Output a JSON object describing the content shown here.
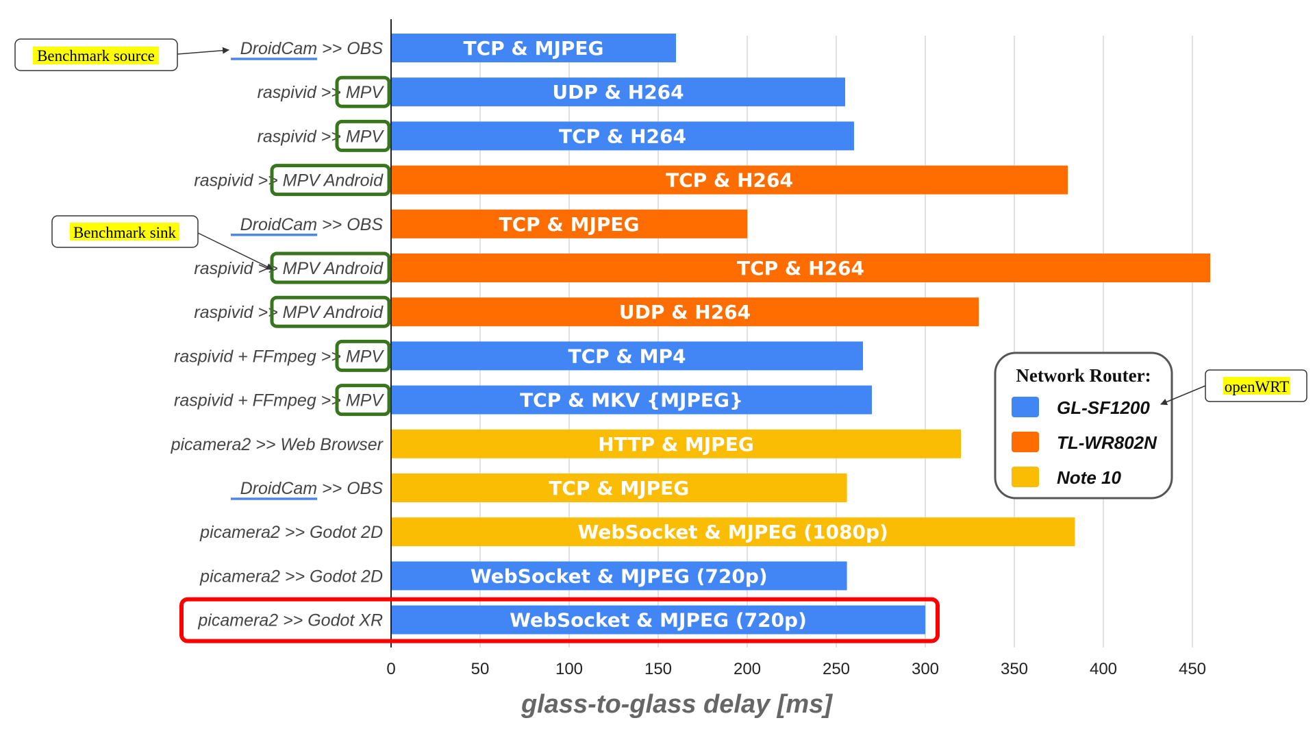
{
  "chart_data": {
    "type": "bar",
    "orientation": "horizontal",
    "xlabel": "glass-to-glass delay [ms]",
    "xlim": [
      0,
      460
    ],
    "xticks": [
      0,
      50,
      100,
      150,
      200,
      250,
      300,
      350,
      400,
      450
    ],
    "grid": true,
    "legend_position": "right",
    "colors": {
      "GL-SF1200": "#4285F4",
      "TL-WR802N": "#FF6D01",
      "Note 10": "#FBBC04"
    },
    "rows": [
      {
        "category": "DroidCam >> OBS",
        "value": 160,
        "label": "TCP & MJPEG",
        "router": "GL-SF1200"
      },
      {
        "category": "raspivid >> MPV",
        "value": 255,
        "label": "UDP & H264",
        "router": "GL-SF1200"
      },
      {
        "category": "raspivid >> MPV",
        "value": 260,
        "label": "TCP & H264",
        "router": "GL-SF1200"
      },
      {
        "category": "raspivid >> MPV Android",
        "value": 380,
        "label": "TCP & H264",
        "router": "TL-WR802N"
      },
      {
        "category": "DroidCam >> OBS",
        "value": 200,
        "label": "TCP & MJPEG",
        "router": "TL-WR802N"
      },
      {
        "category": "raspivid >> MPV Android",
        "value": 460,
        "label": "TCP & H264",
        "router": "TL-WR802N"
      },
      {
        "category": "raspivid >> MPV Android",
        "value": 330,
        "label": "UDP & H264",
        "router": "TL-WR802N"
      },
      {
        "category": "raspivid + FFmpeg >> MPV",
        "value": 265,
        "label": "TCP & MP4",
        "router": "GL-SF1200"
      },
      {
        "category": "raspivid + FFmpeg >> MPV",
        "value": 270,
        "label": "TCP & MKV {MJPEG}",
        "router": "GL-SF1200"
      },
      {
        "category": "picamera2 >> Web Browser",
        "value": 320,
        "label": "HTTP & MJPEG",
        "router": "Note 10"
      },
      {
        "category": "DroidCam >> OBS",
        "value": 256,
        "label": "TCP & MJPEG",
        "router": "Note 10"
      },
      {
        "category": "picamera2 >> Godot 2D",
        "value": 384,
        "label": "WebSocket & MJPEG (1080p)",
        "router": "Note 10"
      },
      {
        "category": "picamera2 >> Godot 2D",
        "value": 256,
        "label": "WebSocket & MJPEG (720p)",
        "router": "GL-SF1200"
      },
      {
        "category": "picamera2 >> Godot XR",
        "value": 300,
        "label": "WebSocket & MJPEG (720p)",
        "router": "GL-SF1200"
      }
    ],
    "legend": {
      "title": "Network Router:",
      "entries": [
        "GL-SF1200",
        "TL-WR802N",
        "Note 10"
      ]
    },
    "annotations": {
      "benchmark_source": "Benchmark source",
      "benchmark_sink": "Benchmark sink",
      "openwrt": "openWRT"
    }
  }
}
